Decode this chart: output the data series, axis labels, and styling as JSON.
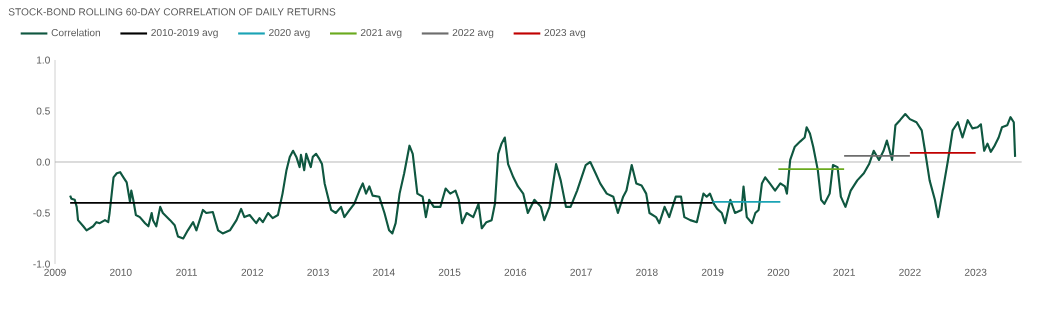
{
  "chart_data": {
    "type": "line",
    "title": "STOCK-BOND ROLLING 60-DAY CORRELATION OF DAILY RETURNS",
    "x": [
      2009.23,
      2009.25,
      2009.3,
      2009.33,
      2009.35,
      2009.43,
      2009.48,
      2009.58,
      2009.63,
      2009.68,
      2009.76,
      2009.81,
      2009.83,
      2009.89,
      2009.94,
      2009.99,
      2010.04,
      2010.09,
      2010.14,
      2010.16,
      2010.19,
      2010.23,
      2010.29,
      2010.37,
      2010.42,
      2010.47,
      2010.49,
      2010.54,
      2010.6,
      2010.64,
      2010.75,
      2010.82,
      2010.87,
      2010.95,
      2011.02,
      2011.1,
      2011.15,
      2011.25,
      2011.3,
      2011.4,
      2011.48,
      2011.55,
      2011.66,
      2011.76,
      2011.83,
      2011.88,
      2011.96,
      2012.06,
      2012.11,
      2012.16,
      2012.24,
      2012.31,
      2012.39,
      2012.46,
      2012.52,
      2012.57,
      2012.62,
      2012.67,
      2012.72,
      2012.74,
      2012.79,
      2012.82,
      2012.89,
      2012.92,
      2012.97,
      2013.02,
      2013.06,
      2013.1,
      2013.15,
      2013.2,
      2013.27,
      2013.35,
      2013.4,
      2013.48,
      2013.55,
      2013.63,
      2013.68,
      2013.73,
      2013.78,
      2013.83,
      2013.93,
      2014.01,
      2014.08,
      2014.13,
      2014.18,
      2014.24,
      2014.31,
      2014.39,
      2014.44,
      2014.51,
      2014.59,
      2014.64,
      2014.69,
      2014.76,
      2014.86,
      2014.94,
      2015.01,
      2015.09,
      2015.14,
      2015.19,
      2015.26,
      2015.36,
      2015.44,
      2015.49,
      2015.56,
      2015.64,
      2015.69,
      2015.74,
      2015.79,
      2015.84,
      2015.89,
      2015.97,
      2016.04,
      2016.12,
      2016.19,
      2016.29,
      2016.39,
      2016.44,
      2016.52,
      2016.62,
      2016.69,
      2016.77,
      2016.84,
      2016.94,
      2017.07,
      2017.14,
      2017.22,
      2017.29,
      2017.39,
      2017.49,
      2017.56,
      2017.64,
      2017.69,
      2017.77,
      2017.84,
      2017.92,
      2017.99,
      2018.04,
      2018.14,
      2018.19,
      2018.27,
      2018.34,
      2018.44,
      2018.52,
      2018.57,
      2018.66,
      2018.76,
      2018.86,
      2018.91,
      2018.96,
      2019.02,
      2019.07,
      2019.14,
      2019.19,
      2019.27,
      2019.34,
      2019.44,
      2019.47,
      2019.52,
      2019.6,
      2019.65,
      2019.7,
      2019.75,
      2019.8,
      2019.87,
      2019.95,
      2020.03,
      2020.1,
      2020.13,
      2020.18,
      2020.25,
      2020.33,
      2020.4,
      2020.43,
      2020.48,
      2020.53,
      2020.6,
      2020.65,
      2020.7,
      2020.78,
      2020.83,
      2020.9,
      2020.95,
      2021.02,
      2021.1,
      2021.2,
      2021.3,
      2021.38,
      2021.45,
      2021.53,
      2021.6,
      2021.65,
      2021.73,
      2021.78,
      2021.85,
      2021.93,
      2022.0,
      2022.1,
      2022.18,
      2022.23,
      2022.3,
      2022.38,
      2022.43,
      2022.5,
      2022.58,
      2022.65,
      2022.73,
      2022.8,
      2022.88,
      2022.95,
      2023.03,
      2023.08,
      2023.13,
      2023.18,
      2023.23,
      2023.28,
      2023.35,
      2023.4,
      2023.48,
      2023.53,
      2023.58,
      2023.6
    ],
    "series": [
      {
        "name": "Correlation",
        "color": "#0f5740",
        "values": [
          -0.33,
          -0.36,
          -0.37,
          -0.44,
          -0.57,
          -0.63,
          -0.67,
          -0.63,
          -0.59,
          -0.6,
          -0.57,
          -0.59,
          -0.5,
          -0.15,
          -0.11,
          -0.1,
          -0.15,
          -0.2,
          -0.39,
          -0.28,
          -0.37,
          -0.52,
          -0.54,
          -0.6,
          -0.63,
          -0.5,
          -0.57,
          -0.63,
          -0.44,
          -0.5,
          -0.57,
          -0.62,
          -0.73,
          -0.75,
          -0.67,
          -0.59,
          -0.67,
          -0.47,
          -0.5,
          -0.49,
          -0.67,
          -0.7,
          -0.67,
          -0.57,
          -0.46,
          -0.54,
          -0.52,
          -0.6,
          -0.55,
          -0.59,
          -0.5,
          -0.55,
          -0.52,
          -0.31,
          -0.08,
          0.05,
          0.11,
          0.05,
          -0.05,
          0.07,
          -0.08,
          0.08,
          -0.05,
          0.05,
          0.08,
          0.03,
          -0.02,
          -0.21,
          -0.34,
          -0.47,
          -0.5,
          -0.44,
          -0.54,
          -0.47,
          -0.41,
          -0.28,
          -0.21,
          -0.31,
          -0.24,
          -0.33,
          -0.34,
          -0.5,
          -0.67,
          -0.7,
          -0.6,
          -0.31,
          -0.11,
          0.16,
          0.08,
          -0.31,
          -0.34,
          -0.54,
          -0.37,
          -0.44,
          -0.44,
          -0.26,
          -0.31,
          -0.28,
          -0.37,
          -0.6,
          -0.5,
          -0.54,
          -0.41,
          -0.65,
          -0.59,
          -0.57,
          -0.41,
          0.08,
          0.18,
          0.24,
          -0.02,
          -0.15,
          -0.24,
          -0.31,
          -0.5,
          -0.37,
          -0.44,
          -0.57,
          -0.44,
          -0.02,
          -0.18,
          -0.44,
          -0.44,
          -0.28,
          -0.03,
          0.0,
          -0.11,
          -0.21,
          -0.31,
          -0.34,
          -0.5,
          -0.34,
          -0.28,
          -0.03,
          -0.21,
          -0.23,
          -0.31,
          -0.5,
          -0.54,
          -0.6,
          -0.44,
          -0.54,
          -0.34,
          -0.34,
          -0.54,
          -0.57,
          -0.59,
          -0.31,
          -0.34,
          -0.31,
          -0.41,
          -0.46,
          -0.5,
          -0.6,
          -0.37,
          -0.5,
          -0.47,
          -0.24,
          -0.54,
          -0.6,
          -0.5,
          -0.47,
          -0.21,
          -0.15,
          -0.21,
          -0.28,
          -0.21,
          -0.24,
          -0.31,
          0.02,
          0.15,
          0.2,
          0.24,
          0.34,
          0.28,
          0.15,
          -0.08,
          -0.37,
          -0.41,
          -0.31,
          -0.03,
          -0.05,
          -0.34,
          -0.44,
          -0.28,
          -0.18,
          -0.11,
          -0.02,
          0.11,
          0.02,
          0.11,
          0.21,
          0.02,
          0.36,
          0.41,
          0.47,
          0.42,
          0.39,
          0.31,
          0.11,
          -0.18,
          -0.37,
          -0.54,
          -0.28,
          0.02,
          0.31,
          0.39,
          0.24,
          0.41,
          0.33,
          0.34,
          0.37,
          0.11,
          0.18,
          0.1,
          0.15,
          0.24,
          0.34,
          0.36,
          0.44,
          0.39,
          0.05
        ]
      },
      {
        "name": "2010-2019 avg",
        "color": "#000000",
        "x": [
          2009.23,
          2019.0
        ],
        "values": [
          -0.4,
          -0.4
        ]
      },
      {
        "name": "2020 avg",
        "color": "#1aa3b5",
        "x": [
          2019.0,
          2020.03
        ],
        "values": [
          -0.39,
          -0.39
        ]
      },
      {
        "name": "2021 avg",
        "color": "#6aaa1e",
        "x": [
          2020.0,
          2021.0
        ],
        "values": [
          -0.07,
          -0.07
        ]
      },
      {
        "name": "2022 avg",
        "color": "#6d6d6d",
        "x": [
          2021.0,
          2022.0
        ],
        "values": [
          0.06,
          0.06
        ]
      },
      {
        "name": "2023 avg",
        "color": "#c00000",
        "x": [
          2022.0,
          2023.0
        ],
        "values": [
          0.09,
          0.09
        ]
      }
    ],
    "xlim": [
      2009,
      2023.7
    ],
    "xticks": [
      2009,
      2010,
      2011,
      2012,
      2013,
      2014,
      2015,
      2016,
      2017,
      2018,
      2019,
      2020,
      2021,
      2022,
      2023
    ],
    "ylim": [
      -1,
      1
    ],
    "yticks": [
      {
        "value": -1,
        "label": "-1.0"
      },
      {
        "value": -0.5,
        "label": "-0.5"
      },
      {
        "value": 0,
        "label": "0.0"
      },
      {
        "value": 0.5,
        "label": "0.5"
      },
      {
        "value": 1,
        "label": "1.0"
      }
    ],
    "legend": "top left",
    "marker": "none",
    "line_style": "solid"
  }
}
